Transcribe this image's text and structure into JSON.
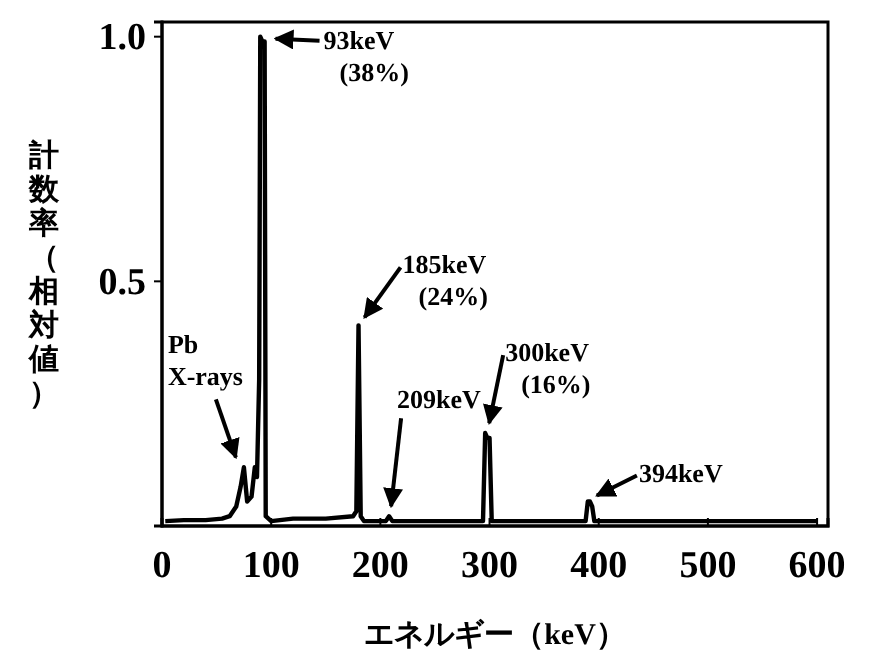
{
  "chart_data": {
    "type": "line",
    "xlabel": "エネルギー（keV）",
    "ylabel": "計数率（相対値）",
    "x": [
      3,
      20,
      40,
      55,
      62,
      68,
      72,
      75,
      78,
      82,
      85,
      87,
      89,
      90,
      92,
      94,
      95,
      100,
      120,
      150,
      175,
      178,
      180,
      182,
      185,
      200,
      205,
      208,
      211,
      215,
      260,
      294,
      296,
      298,
      300,
      302,
      330,
      385,
      388,
      390,
      392,
      394,
      396,
      420,
      500,
      600
    ],
    "series": [
      {
        "color": "#000000",
        "values": [
          0.01,
          0.012,
          0.012,
          0.015,
          0.02,
          0.04,
          0.08,
          0.12,
          0.05,
          0.06,
          0.12,
          0.1,
          0.3,
          1.0,
          0.99,
          0.99,
          0.02,
          0.01,
          0.015,
          0.015,
          0.02,
          0.03,
          0.41,
          0.02,
          0.01,
          0.01,
          0.01,
          0.02,
          0.01,
          0.01,
          0.01,
          0.01,
          0.19,
          0.18,
          0.18,
          0.01,
          0.01,
          0.01,
          0.01,
          0.05,
          0.05,
          0.04,
          0.01,
          0.01,
          0.01,
          0.01
        ]
      }
    ],
    "xlim": [
      0,
      610
    ],
    "ylim": [
      0,
      1.03
    ],
    "xticks": [
      0,
      100,
      200,
      300,
      400,
      500,
      600
    ],
    "yticks": [
      {
        "value": 0,
        "label": null
      },
      {
        "value": 0.5,
        "label": "0.5"
      },
      {
        "value": 1.0,
        "label": "1.0"
      }
    ],
    "grid": false,
    "marker": "none",
    "line_style": "solid",
    "annotations": [
      {
        "text": "93keV\n(38%)",
        "x": 93,
        "y": 1.0
      },
      {
        "text": "185keV\n(24%)",
        "x": 180,
        "y": 0.41
      },
      {
        "text": "209keV",
        "x": 208,
        "y": 0.02
      },
      {
        "text": "300keV\n(16%)",
        "x": 296,
        "y": 0.19
      },
      {
        "text": "394keV",
        "x": 391,
        "y": 0.05
      },
      {
        "text": "Pb\nX-rays",
        "x": 75,
        "y": 0.12
      }
    ]
  }
}
